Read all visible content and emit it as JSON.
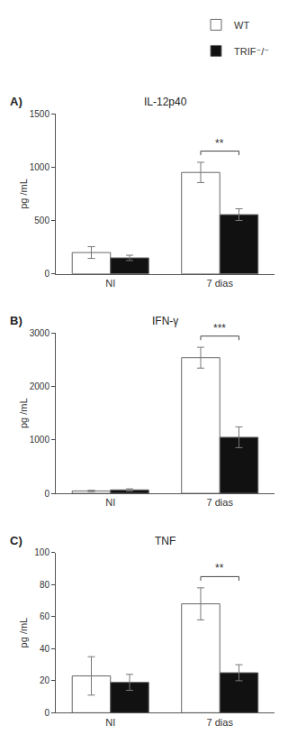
{
  "chart_data": [
    {
      "type": "bar",
      "title": "IL-12p40",
      "annotations": [
        {
          "text": "A)"
        },
        {
          "text": "**",
          "category": "7 dias"
        }
      ],
      "categories": [
        "NI",
        "7 dias"
      ],
      "series": [
        {
          "name": "WT",
          "color": "#ffffff",
          "values": [
            200,
            950
          ],
          "errors": [
            55,
            95
          ]
        },
        {
          "name": "TRIF⁻/⁻",
          "color": "#111111",
          "values": [
            150,
            555
          ],
          "errors": [
            25,
            55
          ]
        }
      ],
      "ylabel": "pg /mL",
      "ylim": [
        0,
        1500
      ],
      "yticks": [
        0,
        500,
        1000,
        1500
      ],
      "grid": false,
      "legend": "upper right"
    },
    {
      "type": "bar",
      "title": "IFN-γ",
      "annotations": [
        {
          "text": "B)"
        },
        {
          "text": "***",
          "category": "7 dias"
        }
      ],
      "categories": [
        "NI",
        "7 dias"
      ],
      "series": [
        {
          "name": "WT",
          "color": "#ffffff",
          "values": [
            45,
            2540
          ],
          "errors": [
            12,
            195
          ]
        },
        {
          "name": "TRIF⁻/⁻",
          "color": "#111111",
          "values": [
            65,
            1050
          ],
          "errors": [
            20,
            195
          ]
        }
      ],
      "ylabel": "pg /mL",
      "ylim": [
        0,
        3000
      ],
      "yticks": [
        0,
        1000,
        2000,
        3000
      ],
      "grid": false
    },
    {
      "type": "bar",
      "title": "TNF",
      "annotations": [
        {
          "text": "C)"
        },
        {
          "text": "**",
          "category": "7 dias"
        }
      ],
      "categories": [
        "NI",
        "7 dias"
      ],
      "series": [
        {
          "name": "WT",
          "color": "#ffffff",
          "values": [
            23,
            68
          ],
          "errors": [
            12,
            10
          ]
        },
        {
          "name": "TRIF⁻/⁻",
          "color": "#111111",
          "values": [
            19,
            25
          ],
          "errors": [
            5,
            5
          ]
        }
      ],
      "ylabel": "pg /mL",
      "ylim": [
        0,
        100
      ],
      "yticks": [
        0,
        20,
        40,
        60,
        80,
        100
      ],
      "grid": false
    }
  ]
}
